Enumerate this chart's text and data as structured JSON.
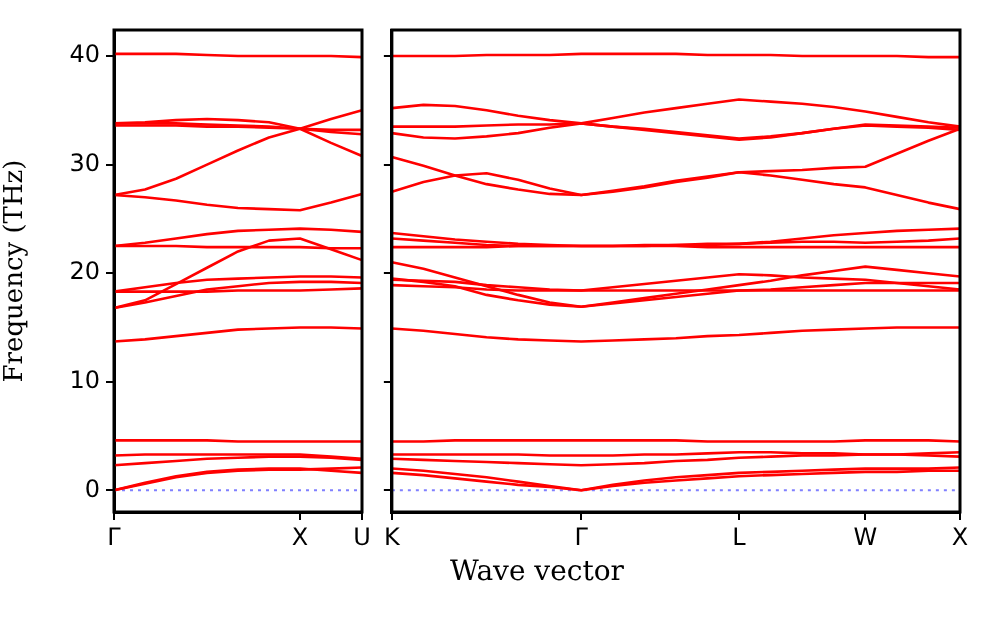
{
  "chart_data": [
    {
      "type": "line",
      "ylabel": "Frequency (THz)",
      "categories": [
        "Γ",
        null,
        null,
        null,
        null,
        null,
        "X",
        null,
        "U"
      ],
      "ylim": [
        -2,
        42.4
      ],
      "yticks": [
        0,
        10,
        20,
        30,
        40
      ],
      "grid": false,
      "legend": false,
      "marker": "none",
      "line_style": "solid",
      "ref_lines": [
        {
          "axis": "y",
          "value": 0,
          "color": "#8080ff",
          "line_style": "dotted"
        }
      ],
      "series": [
        {
          "color": "#ff0000",
          "values": [
            40.2,
            40.2,
            40.2,
            40.1,
            40.0,
            40.0,
            40.0,
            40.0,
            39.9
          ]
        },
        {
          "color": "#ff0000",
          "values": [
            33.8,
            33.9,
            34.1,
            34.2,
            34.1,
            33.9,
            33.3,
            33.2,
            33.2
          ]
        },
        {
          "color": "#ff0000",
          "values": [
            33.6,
            33.6,
            33.6,
            33.5,
            33.5,
            33.4,
            33.3,
            33.0,
            32.8
          ]
        },
        {
          "color": "#ff0000",
          "values": [
            27.2,
            27.7,
            28.7,
            30.0,
            31.3,
            32.5,
            33.3,
            34.2,
            35.0
          ]
        },
        {
          "color": "#ff0000",
          "values": [
            33.8,
            33.8,
            33.8,
            33.7,
            33.6,
            33.5,
            33.3,
            32.0,
            30.8
          ]
        },
        {
          "color": "#ff0000",
          "values": [
            27.2,
            27.0,
            26.7,
            26.3,
            26.0,
            25.9,
            25.8,
            26.5,
            27.3
          ]
        },
        {
          "color": "#ff0000",
          "values": [
            22.5,
            22.8,
            23.2,
            23.6,
            23.9,
            24.0,
            24.1,
            24.0,
            23.8
          ]
        },
        {
          "color": "#ff0000",
          "values": [
            22.5,
            22.5,
            22.5,
            22.4,
            22.4,
            22.4,
            22.4,
            22.3,
            22.3
          ]
        },
        {
          "color": "#ff0000",
          "values": [
            16.8,
            17.5,
            19.0,
            20.5,
            22.0,
            23.0,
            23.2,
            22.2,
            21.2
          ]
        },
        {
          "color": "#ff0000",
          "values": [
            18.3,
            18.7,
            19.1,
            19.4,
            19.5,
            19.6,
            19.7,
            19.7,
            19.6
          ]
        },
        {
          "color": "#ff0000",
          "values": [
            18.3,
            18.3,
            18.3,
            18.3,
            18.4,
            18.4,
            18.4,
            18.5,
            18.6
          ]
        },
        {
          "color": "#ff0000",
          "values": [
            16.8,
            17.3,
            17.9,
            18.5,
            18.8,
            19.1,
            19.2,
            19.2,
            19.1
          ]
        },
        {
          "color": "#ff0000",
          "values": [
            13.7,
            13.9,
            14.2,
            14.5,
            14.8,
            14.9,
            15.0,
            15.0,
            14.9
          ]
        },
        {
          "color": "#ff0000",
          "values": [
            4.6,
            4.6,
            4.6,
            4.6,
            4.5,
            4.5,
            4.5,
            4.5,
            4.5
          ]
        },
        {
          "color": "#ff0000",
          "values": [
            3.2,
            3.3,
            3.3,
            3.3,
            3.3,
            3.3,
            3.3,
            3.1,
            2.9
          ]
        },
        {
          "color": "#ff0000",
          "values": [
            2.3,
            2.5,
            2.7,
            2.9,
            3.0,
            3.1,
            3.1,
            3.0,
            2.8
          ]
        },
        {
          "color": "#ff0000",
          "values": [
            0,
            0.7,
            1.3,
            1.7,
            1.9,
            2.0,
            2.0,
            1.8,
            1.6
          ]
        },
        {
          "color": "#ff0000",
          "values": [
            0,
            0.6,
            1.2,
            1.6,
            1.8,
            1.9,
            1.9,
            2.0,
            2.1
          ]
        }
      ]
    },
    {
      "type": "line",
      "xlabel": "Wave vector",
      "categories": [
        "K",
        null,
        null,
        null,
        null,
        null,
        "Γ",
        null,
        null,
        null,
        null,
        "L",
        null,
        null,
        null,
        "W",
        null,
        null,
        "X"
      ],
      "ylim": [
        -2,
        42.4
      ],
      "yticks": [
        0,
        10,
        20,
        30,
        40
      ],
      "tick_labels": "x",
      "grid": false,
      "legend": false,
      "marker": "none",
      "line_style": "solid",
      "ref_lines": [
        {
          "axis": "y",
          "value": 0,
          "color": "#8080ff",
          "line_style": "dotted"
        }
      ],
      "series": [
        {
          "color": "#ff0000",
          "values": [
            40.0,
            40.0,
            40.0,
            40.1,
            40.1,
            40.1,
            40.2,
            40.2,
            40.2,
            40.2,
            40.1,
            40.1,
            40.1,
            40.0,
            40.0,
            40.0,
            40.0,
            39.9,
            39.9
          ]
        },
        {
          "color": "#ff0000",
          "values": [
            35.2,
            35.5,
            35.4,
            35.0,
            34.5,
            34.1,
            33.8,
            34.3,
            34.8,
            35.2,
            35.6,
            36.0,
            35.8,
            35.6,
            35.3,
            34.9,
            34.4,
            33.9,
            33.5
          ]
        },
        {
          "color": "#ff0000",
          "values": [
            33.5,
            33.5,
            33.5,
            33.6,
            33.7,
            33.7,
            33.8,
            33.5,
            33.3,
            33.0,
            32.7,
            32.4,
            32.6,
            32.9,
            33.3,
            33.7,
            33.6,
            33.5,
            33.4
          ]
        },
        {
          "color": "#ff0000",
          "values": [
            32.9,
            32.5,
            32.4,
            32.6,
            32.9,
            33.4,
            33.8,
            33.5,
            33.2,
            32.9,
            32.6,
            32.3,
            32.5,
            32.9,
            33.3,
            33.6,
            33.5,
            33.4,
            33.2
          ]
        },
        {
          "color": "#ff0000",
          "values": [
            30.7,
            29.9,
            29.0,
            28.2,
            27.7,
            27.3,
            27.2,
            27.6,
            28.0,
            28.5,
            28.9,
            29.3,
            29.4,
            29.5,
            29.7,
            29.8,
            31.0,
            32.2,
            33.3
          ]
        },
        {
          "color": "#ff0000",
          "values": [
            27.5,
            28.4,
            29.0,
            29.2,
            28.6,
            27.8,
            27.2,
            27.5,
            27.9,
            28.4,
            28.8,
            29.3,
            29.0,
            28.6,
            28.2,
            27.9,
            27.2,
            26.5,
            25.9
          ]
        },
        {
          "color": "#ff0000",
          "values": [
            23.7,
            23.4,
            23.1,
            22.9,
            22.7,
            22.6,
            22.5,
            22.5,
            22.6,
            22.6,
            22.7,
            22.7,
            22.9,
            23.2,
            23.5,
            23.7,
            23.9,
            24.0,
            24.1
          ]
        },
        {
          "color": "#ff0000",
          "values": [
            23.2,
            23.0,
            22.8,
            22.6,
            22.5,
            22.5,
            22.5,
            22.5,
            22.5,
            22.6,
            22.6,
            22.7,
            22.8,
            22.9,
            22.9,
            22.8,
            22.9,
            23.0,
            23.2
          ]
        },
        {
          "color": "#ff0000",
          "values": [
            22.4,
            22.4,
            22.4,
            22.4,
            22.5,
            22.5,
            22.5,
            22.5,
            22.5,
            22.5,
            22.4,
            22.4,
            22.4,
            22.4,
            22.4,
            22.4,
            22.4,
            22.4,
            22.4
          ]
        },
        {
          "color": "#ff0000",
          "values": [
            21.0,
            20.4,
            19.6,
            18.8,
            18.0,
            17.3,
            16.9,
            17.3,
            17.7,
            18.1,
            18.5,
            18.9,
            19.3,
            19.8,
            20.2,
            20.6,
            20.3,
            20.0,
            19.7
          ]
        },
        {
          "color": "#ff0000",
          "values": [
            19.5,
            19.2,
            18.8,
            18.0,
            17.5,
            17.1,
            16.9,
            17.2,
            17.5,
            17.8,
            18.1,
            18.4,
            18.5,
            18.7,
            18.9,
            19.1,
            19.1,
            19.1,
            19.1
          ]
        },
        {
          "color": "#ff0000",
          "values": [
            19.4,
            19.3,
            19.2,
            18.9,
            18.7,
            18.5,
            18.4,
            18.7,
            19.0,
            19.3,
            19.6,
            19.9,
            19.8,
            19.6,
            19.5,
            19.4,
            19.1,
            18.8,
            18.5
          ]
        },
        {
          "color": "#ff0000",
          "values": [
            18.9,
            18.8,
            18.7,
            18.5,
            18.4,
            18.4,
            18.4,
            18.4,
            18.4,
            18.4,
            18.4,
            18.4,
            18.4,
            18.4,
            18.4,
            18.4,
            18.4,
            18.4,
            18.4
          ]
        },
        {
          "color": "#ff0000",
          "values": [
            14.9,
            14.7,
            14.4,
            14.1,
            13.9,
            13.8,
            13.7,
            13.8,
            13.9,
            14.0,
            14.2,
            14.3,
            14.5,
            14.7,
            14.8,
            14.9,
            15.0,
            15.0,
            15.0
          ]
        },
        {
          "color": "#ff0000",
          "values": [
            4.5,
            4.5,
            4.6,
            4.6,
            4.6,
            4.6,
            4.6,
            4.6,
            4.6,
            4.6,
            4.5,
            4.5,
            4.5,
            4.5,
            4.5,
            4.6,
            4.6,
            4.6,
            4.5
          ]
        },
        {
          "color": "#ff0000",
          "values": [
            3.3,
            3.3,
            3.3,
            3.3,
            3.3,
            3.2,
            3.2,
            3.2,
            3.3,
            3.3,
            3.4,
            3.5,
            3.5,
            3.4,
            3.4,
            3.3,
            3.3,
            3.2,
            3.1
          ]
        },
        {
          "color": "#ff0000",
          "values": [
            2.9,
            2.8,
            2.7,
            2.6,
            2.5,
            2.4,
            2.3,
            2.4,
            2.5,
            2.7,
            2.8,
            3.0,
            3.1,
            3.2,
            3.2,
            3.3,
            3.3,
            3.4,
            3.5
          ]
        },
        {
          "color": "#ff0000",
          "values": [
            2.0,
            1.8,
            1.5,
            1.2,
            0.8,
            0.4,
            0,
            0.5,
            0.9,
            1.2,
            1.4,
            1.6,
            1.7,
            1.8,
            1.9,
            2.0,
            2.0,
            2.0,
            2.1
          ]
        },
        {
          "color": "#ff0000",
          "values": [
            1.6,
            1.4,
            1.1,
            0.8,
            0.5,
            0.3,
            0,
            0.4,
            0.7,
            0.9,
            1.1,
            1.3,
            1.4,
            1.5,
            1.6,
            1.7,
            1.7,
            1.8,
            1.8
          ]
        }
      ]
    }
  ]
}
